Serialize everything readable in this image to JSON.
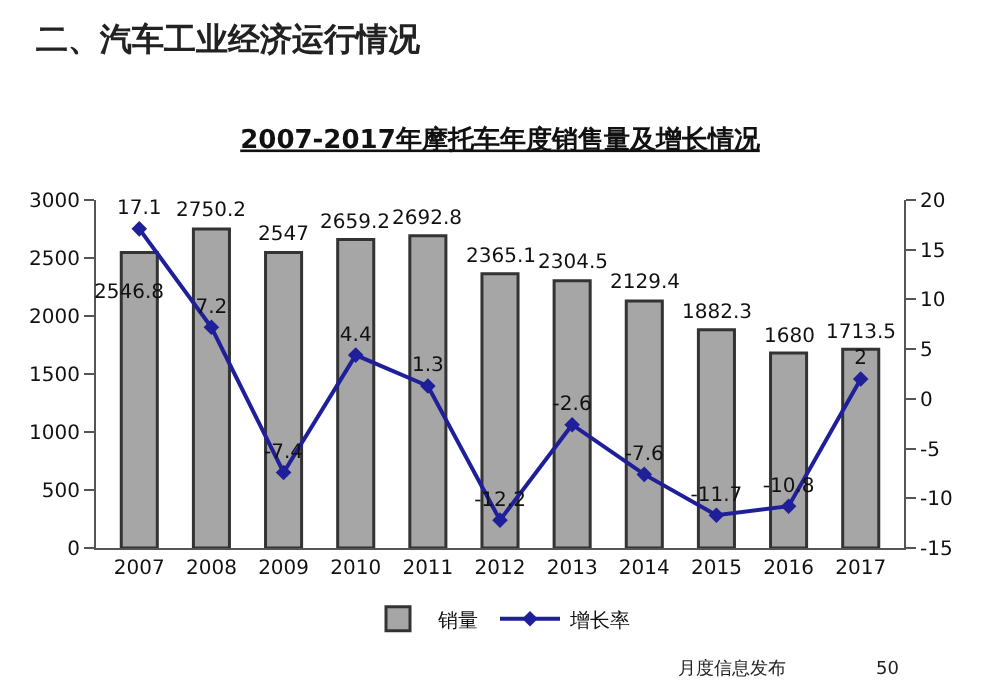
{
  "chart_data": {
    "type": "bar",
    "title": "2007-2017年摩托车年度销售量及增长情况",
    "annotations": [
      "二、汽车工业经济运行情况",
      "月度信息发布",
      "50"
    ],
    "categories": [
      "2007",
      "2008",
      "2009",
      "2010",
      "2011",
      "2012",
      "2013",
      "2014",
      "2015",
      "2016",
      "2017"
    ],
    "series": [
      {
        "name": "销量",
        "color": "#a6a6a6",
        "values": [
          2546.8,
          2750.2,
          2547,
          2659.2,
          2692.8,
          2365.1,
          2304.5,
          2129.4,
          1882.3,
          1680,
          1713.5
        ]
      },
      {
        "name": "增长率",
        "type": "line",
        "axis": "y2",
        "color": "#1f1f9a",
        "marker": "diamond",
        "values": [
          17.1,
          7.2,
          -7.4,
          4.4,
          1.3,
          -12.2,
          -2.6,
          -7.6,
          -11.7,
          -10.8,
          2
        ]
      }
    ],
    "ylim": [
      0,
      3000
    ],
    "yticks": [
      0,
      500,
      1000,
      1500,
      2000,
      2500,
      3000
    ],
    "y2lim": [
      -15,
      20
    ],
    "y2ticks": [
      -15,
      -10,
      -5,
      0,
      5,
      10,
      15,
      20
    ],
    "data_labels": true,
    "legend": "bottom"
  }
}
